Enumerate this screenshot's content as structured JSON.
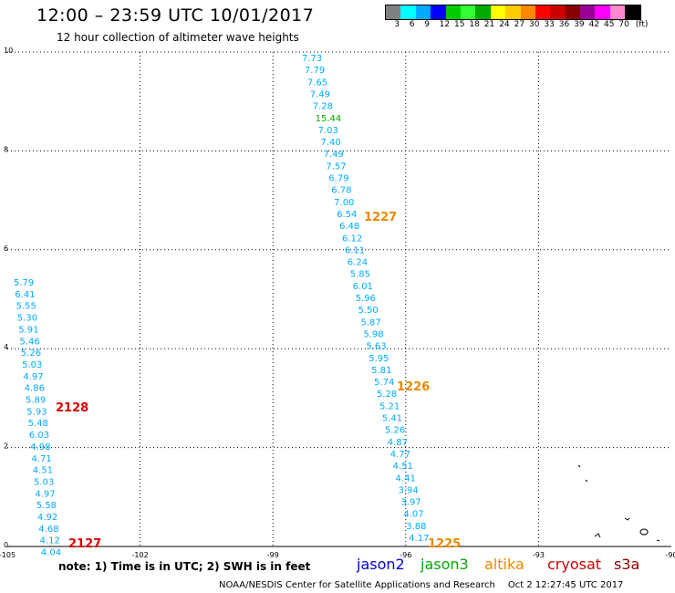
{
  "header": {
    "title": "12:00 – 23:59 UTC 10/01/2017",
    "subtitle": "12 hour collection of altimeter wave heights"
  },
  "legend": {
    "colors": [
      "#808080",
      "#00ffff",
      "#00aaff",
      "#0000ff",
      "#00cc00",
      "#33ff33",
      "#00aa00",
      "#ffff00",
      "#ffcc00",
      "#ff8800",
      "#ff0000",
      "#cc0000",
      "#880000",
      "#990099",
      "#ff00ff",
      "#ff88cc",
      "#000000"
    ],
    "labels": [
      "3",
      "6",
      "9",
      "12",
      "15",
      "18",
      "21",
      "24",
      "27",
      "30",
      "33",
      "36",
      "39",
      "42",
      "45",
      "70",
      "(ft)"
    ]
  },
  "map": {
    "x_ticks": [
      "-105",
      "-102",
      "-99",
      "-96",
      "-93",
      "-90"
    ],
    "y_ticks": [
      "0",
      "2",
      "4",
      "6",
      "8",
      "10"
    ],
    "colors": {
      "cyan": "#00aaff",
      "green": "#00aa00",
      "orange": "#ee8800",
      "red": "#dd0000"
    },
    "track_right": [
      "7.73",
      "7.79",
      "7.65",
      "7.49",
      "7.28",
      "15.44",
      "7.03",
      "7.40",
      "7.49",
      "7.57",
      "6.79",
      "6.78",
      "7.00",
      "6.54",
      "6.48",
      "6.12",
      "6.11",
      "6.24",
      "5.85",
      "6.01",
      "5.96",
      "5.50",
      "5.87",
      "5.98",
      "5.63",
      "5.95",
      "5.81",
      "5.74",
      "5.28",
      "5.21",
      "5.41",
      "5.26",
      "4.87",
      "4.77",
      "4.51",
      "4.41",
      "3.94",
      "3.97",
      "4.07",
      "3.88",
      "4.17"
    ],
    "track_left": [
      "5.79",
      "6.41",
      "5.55",
      "5.30",
      "5.91",
      "5.46",
      "5.26",
      "5.03",
      "4.97",
      "4.86",
      "5.89",
      "5.93",
      "5.48",
      "6.03",
      "4.98",
      "4.71",
      "4.51",
      "5.03",
      "4.97",
      "5.58",
      "4.92",
      "4.68",
      "4.12",
      "4.04"
    ],
    "time_labels": [
      {
        "text": "1227",
        "color": "orange"
      },
      {
        "text": "1226",
        "color": "orange"
      },
      {
        "text": "1225",
        "color": "orange"
      },
      {
        "text": "2128",
        "color": "red"
      },
      {
        "text": "2127",
        "color": "red"
      }
    ]
  },
  "note": "note: 1) Time is in UTC; 2) SWH is in feet",
  "satellites": [
    {
      "name": "jason2",
      "color": "#0000cc"
    },
    {
      "name": "jason3",
      "color": "#00aa00"
    },
    {
      "name": "altika",
      "color": "#ee8800"
    },
    {
      "name": "cryosat",
      "color": "#cc0000"
    },
    {
      "name": "s3a",
      "color": "#880000"
    }
  ],
  "footer": {
    "org": "NOAA/NESDIS Center for Satellite Applications and Research",
    "timestamp": "Oct  2 12:27:45 UTC 2017"
  }
}
